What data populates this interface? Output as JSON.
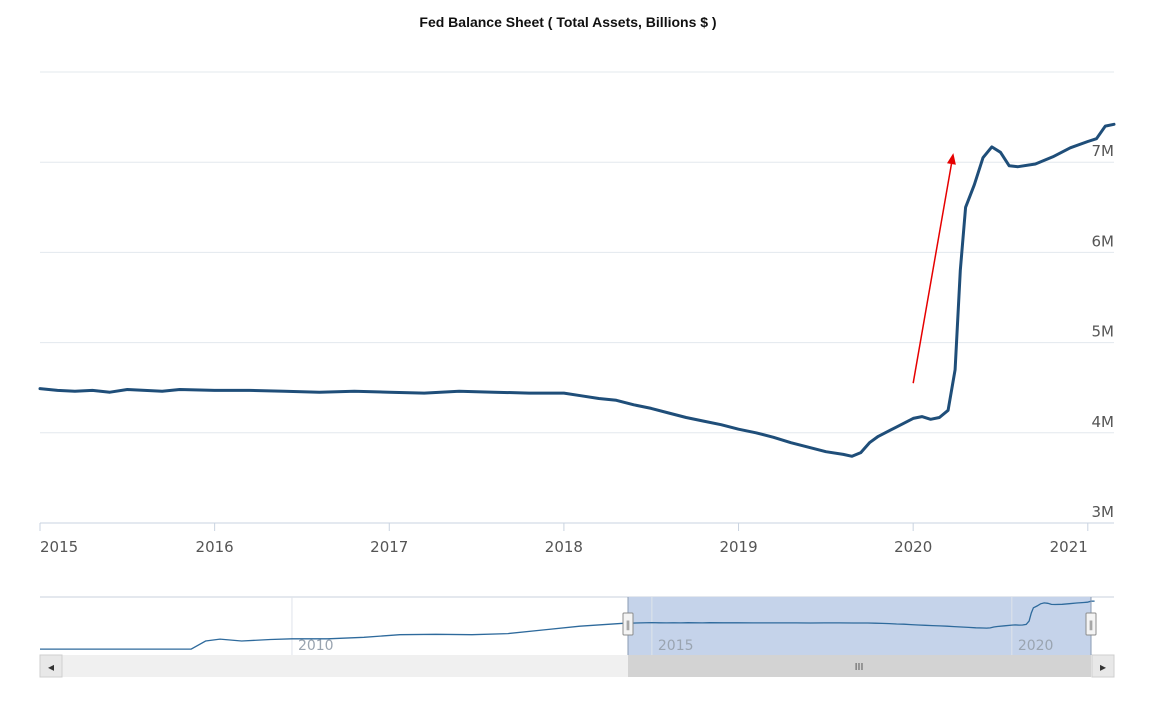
{
  "chart_data": {
    "type": "line",
    "title": "Fed Balance Sheet ( Total Assets, Billions $ )",
    "xlabel": "",
    "ylabel": "",
    "xlim": [
      2015.0,
      2021.15
    ],
    "ylim": [
      3.0,
      8.0
    ],
    "x_ticks": [
      2015,
      2016,
      2017,
      2018,
      2019,
      2020,
      2021
    ],
    "x_tick_labels": [
      "2015",
      "2016",
      "2017",
      "2018",
      "2019",
      "2020",
      "2021"
    ],
    "y_ticks": [
      3,
      4,
      5,
      6,
      7
    ],
    "y_tick_labels": [
      "3M",
      "4M",
      "5M",
      "6M",
      "7M"
    ],
    "grid": true,
    "series": [
      {
        "color": "#1f4e79",
        "x": [
          2015.0,
          2015.1,
          2015.2,
          2015.3,
          2015.4,
          2015.5,
          2015.6,
          2015.7,
          2015.8,
          2016.0,
          2016.2,
          2016.4,
          2016.6,
          2016.8,
          2017.0,
          2017.2,
          2017.4,
          2017.6,
          2017.8,
          2018.0,
          2018.1,
          2018.2,
          2018.3,
          2018.4,
          2018.5,
          2018.6,
          2018.7,
          2018.8,
          2018.9,
          2019.0,
          2019.1,
          2019.2,
          2019.3,
          2019.4,
          2019.5,
          2019.6,
          2019.65,
          2019.7,
          2019.75,
          2019.8,
          2019.9,
          2020.0,
          2020.05,
          2020.1,
          2020.15,
          2020.2,
          2020.24,
          2020.27,
          2020.3,
          2020.35,
          2020.4,
          2020.45,
          2020.5,
          2020.55,
          2020.6,
          2020.7,
          2020.8,
          2020.9,
          2021.0,
          2021.05,
          2021.1,
          2021.15
        ],
        "y": [
          4.49,
          4.47,
          4.46,
          4.47,
          4.45,
          4.48,
          4.47,
          4.46,
          4.48,
          4.47,
          4.47,
          4.46,
          4.45,
          4.46,
          4.45,
          4.44,
          4.46,
          4.45,
          4.44,
          4.44,
          4.41,
          4.38,
          4.36,
          4.31,
          4.27,
          4.22,
          4.17,
          4.13,
          4.09,
          4.04,
          4.0,
          3.95,
          3.89,
          3.84,
          3.79,
          3.76,
          3.74,
          3.78,
          3.89,
          3.96,
          4.06,
          4.16,
          4.18,
          4.15,
          4.17,
          4.25,
          4.7,
          5.8,
          6.5,
          6.75,
          7.05,
          7.17,
          7.11,
          6.96,
          6.95,
          6.98,
          7.06,
          7.16,
          7.23,
          7.26,
          7.4,
          7.42
        ]
      }
    ],
    "annotations": [
      {
        "type": "arrow",
        "color": "#e60000",
        "from": [
          2020.0,
          4.55
        ],
        "to": [
          2020.23,
          7.1
        ]
      }
    ],
    "navigator": {
      "x_tick_labels": [
        "2010",
        "2015",
        "2020"
      ],
      "scroll_grip": "III",
      "left_arrow": "◂",
      "right_arrow": "▸",
      "handle_glyph": "‖"
    }
  }
}
